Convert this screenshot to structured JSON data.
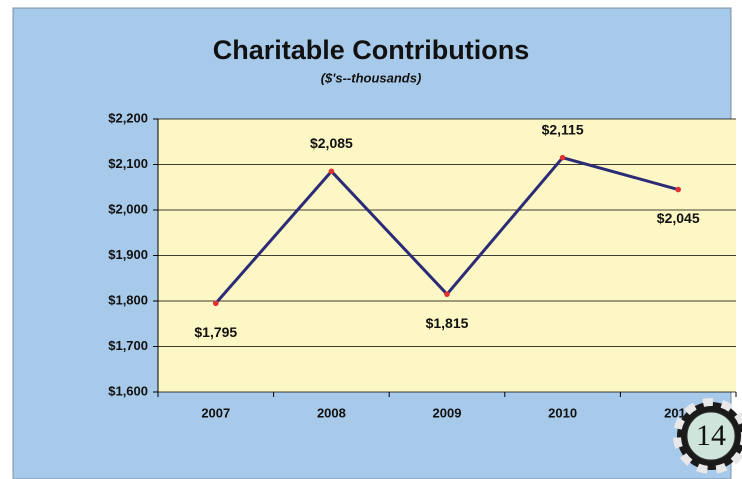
{
  "chart_data": {
    "type": "line",
    "title": "Charitable Contributions",
    "subtitle": "($'s--thousands)",
    "categories": [
      "2007",
      "2008",
      "2009",
      "2010",
      "2011"
    ],
    "series": [
      {
        "name": "Contributions",
        "color": "#2b2b78",
        "marker_color": "#e03030",
        "values": [
          1795,
          2085,
          1815,
          2115,
          2045
        ],
        "value_labels": [
          "$1,795",
          "$2,085",
          "$1,815",
          "$2,115",
          "$2,045"
        ]
      }
    ],
    "ylim": [
      1600,
      2200
    ],
    "yticks": [
      {
        "value": 1600,
        "label": "$1,600"
      },
      {
        "value": 1700,
        "label": "$1,700"
      },
      {
        "value": 1800,
        "label": "$1,800"
      },
      {
        "value": 1900,
        "label": "$1,900"
      },
      {
        "value": 2000,
        "label": "$2,000"
      },
      {
        "value": 2100,
        "label": "$2,100"
      },
      {
        "value": 2200,
        "label": "$2,200"
      }
    ],
    "grid": true,
    "page_number": "14"
  }
}
